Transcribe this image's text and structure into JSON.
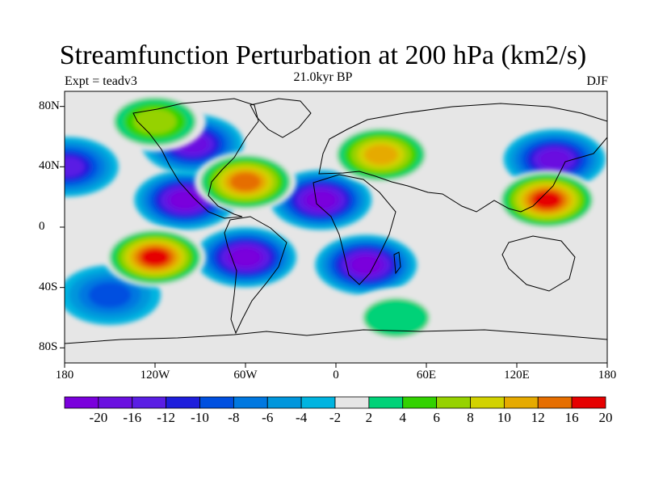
{
  "title": "Streamfunction Perturbation at 200 hPa (km2/s)",
  "subtitle_left": "Expt = teadv3",
  "subtitle_center": "21.0kyr BP",
  "subtitle_right": "DJF",
  "chart_data": {
    "type": "heatmap",
    "projection": "cylindrical-equidistant",
    "xlim": [
      -180,
      180
    ],
    "ylim": [
      -90,
      90
    ],
    "x_ticks": [
      "180",
      "120W",
      "60W",
      "0",
      "60E",
      "120E",
      "180"
    ],
    "y_ticks": [
      "80N",
      "40N",
      "0",
      "40S",
      "80S"
    ],
    "colorbar": {
      "levels": [
        "-20",
        "-16",
        "-12",
        "-10",
        "-8",
        "-6",
        "-4",
        "-2",
        "2",
        "4",
        "6",
        "8",
        "10",
        "12",
        "16",
        "20"
      ],
      "colors": [
        "#7a00dc",
        "#6a10e0",
        "#5a1ee4",
        "#1e1edc",
        "#0050e0",
        "#0078e0",
        "#0096dc",
        "#00b4e0",
        "#e6e6e6",
        "#00d278",
        "#32d200",
        "#96d200",
        "#d2d200",
        "#e6aa00",
        "#e66e00",
        "#e60000"
      ]
    },
    "features": [
      {
        "lon": -100,
        "lat": 18,
        "value": -20
      },
      {
        "lon": -95,
        "lat": 55,
        "value": -16
      },
      {
        "lon": -60,
        "lat": -20,
        "value": -20
      },
      {
        "lon": -10,
        "lat": 18,
        "value": -20
      },
      {
        "lon": 20,
        "lat": -25,
        "value": -20
      },
      {
        "lon": 145,
        "lat": 45,
        "value": -16
      },
      {
        "lon": -178,
        "lat": 40,
        "value": -12
      },
      {
        "lon": -150,
        "lat": -45,
        "value": -8
      },
      {
        "lon": -60,
        "lat": 30,
        "value": 16
      },
      {
        "lon": 30,
        "lat": 48,
        "value": 12
      },
      {
        "lon": 140,
        "lat": 18,
        "value": 20
      },
      {
        "lon": -120,
        "lat": -20,
        "value": 20
      },
      {
        "lon": -120,
        "lat": 70,
        "value": 8
      },
      {
        "lon": 40,
        "lat": -60,
        "value": 4
      }
    ]
  }
}
